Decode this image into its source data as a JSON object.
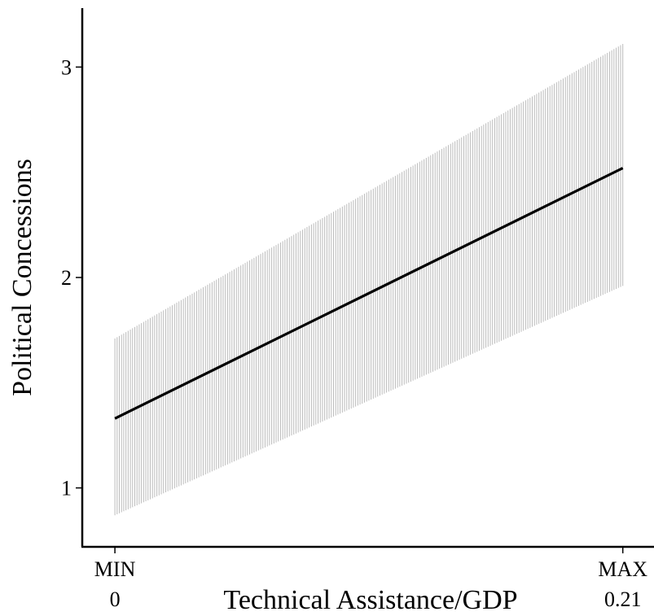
{
  "chart_data": {
    "type": "line",
    "title": "",
    "xlabel": "Technical Assistance/GDP",
    "ylabel": "Political Concessions",
    "x_tick_labels": [
      {
        "top": "MIN",
        "bottom": "0"
      },
      {
        "top": "MAX",
        "bottom": "0.21"
      }
    ],
    "yticks": [
      1,
      2,
      3
    ],
    "xlim": [
      -0.0135,
      0.2229
    ],
    "ylim": [
      0.72,
      3.28
    ],
    "grid": false,
    "legend": "none",
    "colors": {
      "line": "#000000",
      "band": "#bbbbbb",
      "axis": "#000000"
    },
    "series": [
      {
        "x": [
          0,
          0.21
        ],
        "y": [
          1.33,
          2.52
        ],
        "lower": [
          0.87,
          1.96
        ],
        "upper": [
          1.71,
          3.11
        ]
      }
    ]
  }
}
